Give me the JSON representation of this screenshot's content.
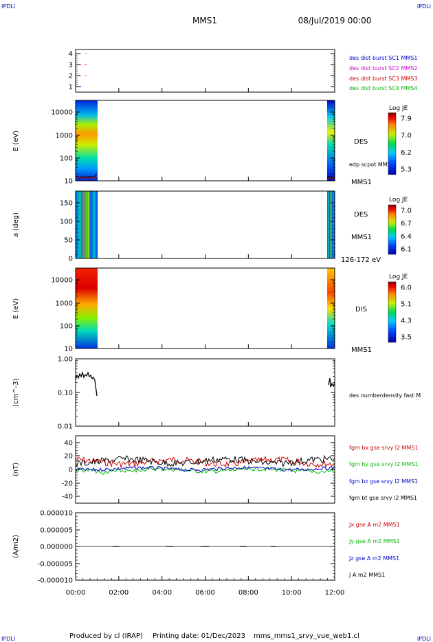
{
  "header": {
    "corner_tl": "IPDLI",
    "corner_tr": "IPDLI",
    "corner_bl": "IPDLI",
    "corner_br": "IPDLI",
    "title": "MMS1",
    "datetime": "08/Jul/2019 00:00"
  },
  "footer": {
    "produced_by": "Produced by cl (IRAP)",
    "printing_date": "Printing date: 01/Dec/2023",
    "filename": "mms_mms1_srvy_vue_web1.cl"
  },
  "colors": {
    "blue": "#0000cc",
    "magenta": "#cc00cc",
    "red": "#cc0000",
    "green": "#00bb00",
    "black": "#000000"
  },
  "chart_data": [
    {
      "type": "scatter",
      "panel": "burst",
      "yticks": [
        "1",
        "2",
        "3",
        "4"
      ],
      "ylim": [
        0.5,
        4.5
      ],
      "legend": [
        "des dist burst SC1 MMS1",
        "des dist burst SC2 MMS2",
        "des dist burst SC3 MMS3",
        "des dist burst SC4 MMS4"
      ],
      "legend_colors": [
        "#0000cc",
        "#cc00cc",
        "#cc0000",
        "#00bb00"
      ]
    },
    {
      "type": "heatmap",
      "panel": "des-energy",
      "ylabel": "E (eV)",
      "yticks": [
        "10",
        "100",
        "1000",
        "10000"
      ],
      "log_y": true,
      "right_labels": [
        "DES",
        "edp scpot MMS1",
        "MMS1"
      ],
      "colorbar": {
        "title": "Log JE",
        "ticks": [
          "7.9",
          "7.0",
          "6.2",
          "5.3"
        ]
      }
    },
    {
      "type": "heatmap",
      "panel": "des-pitch",
      "ylabel": "a (deg)",
      "yticks": [
        "0",
        "50",
        "100",
        "150"
      ],
      "right_labels": [
        "DES",
        "MMS1",
        "126-172 eV"
      ],
      "colorbar": {
        "title": "Log JE",
        "ticks": [
          "7.0",
          "6.7",
          "6.4",
          "6.1"
        ]
      }
    },
    {
      "type": "heatmap",
      "panel": "dis-energy",
      "ylabel": "E (eV)",
      "yticks": [
        "10",
        "100",
        "1000",
        "10000"
      ],
      "log_y": true,
      "right_labels": [
        "DIS",
        "MMS1"
      ],
      "colorbar": {
        "title": "Log JE",
        "ticks": [
          "6.0",
          "5.1",
          "4.3",
          "3.5"
        ]
      }
    },
    {
      "type": "line",
      "panel": "density",
      "ylabel": "(cm^-3)",
      "yticks": [
        "0.01",
        "0.10",
        "1.00"
      ],
      "log_y": true,
      "legend": [
        "des numberdensity fast M"
      ]
    },
    {
      "type": "line",
      "panel": "fgm",
      "ylabel": "(nT)",
      "yticks": [
        "-40",
        "-20",
        "0",
        "20",
        "40"
      ],
      "ylim": [
        -50,
        50
      ],
      "legend": [
        "fgm bx gse srvy l2 MMS1",
        "fgm by gse srvy l2 MMS1",
        "fgm bz gse srvy l2 MMS1",
        "fgm bt gse srvy l2 MMS1"
      ],
      "legend_colors": [
        "#cc0000",
        "#00bb00",
        "#0000cc",
        "#000000"
      ]
    },
    {
      "type": "line",
      "panel": "current",
      "ylabel": "(A/m2)",
      "yticks": [
        "-0.000010",
        "-0.000005",
        "0.000000",
        "0.000005",
        "0.000010"
      ],
      "ylim": [
        -1e-05,
        1e-05
      ],
      "legend": [
        "Jx gse A m2 MMS1",
        "Jy gse A m2 MMS1",
        "Jz gse A m2 MMS1",
        "J A m2 MMS1"
      ],
      "legend_colors": [
        "#cc0000",
        "#00bb00",
        "#0000cc",
        "#000000"
      ]
    }
  ],
  "xaxis": {
    "ticks": [
      "00:00",
      "02:00",
      "04:00",
      "06:00",
      "08:00",
      "10:00",
      "12:00"
    ]
  }
}
